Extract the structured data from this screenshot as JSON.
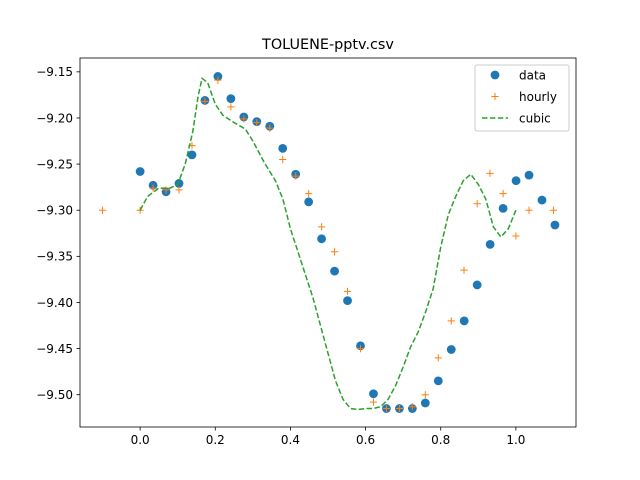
{
  "chart_data": {
    "type": "line",
    "title": "TOLUENE-pptv.csv",
    "xlabel": "",
    "ylabel": "",
    "xlim": [
      -0.16,
      1.16
    ],
    "ylim": [
      -9.535,
      -9.135
    ],
    "x_ticks": [
      0.0,
      0.2,
      0.4,
      0.6,
      0.8,
      1.0
    ],
    "x_tick_labels": [
      "0.0",
      "0.2",
      "0.4",
      "0.6",
      "0.8",
      "1.0"
    ],
    "y_ticks": [
      -9.15,
      -9.2,
      -9.25,
      -9.3,
      -9.35,
      -9.4,
      -9.45,
      -9.5
    ],
    "y_tick_labels": [
      "−9.15",
      "−9.20",
      "−9.25",
      "−9.30",
      "−9.35",
      "−9.40",
      "−9.45",
      "−9.50"
    ],
    "grid": false,
    "legend_position": "top-right",
    "series": [
      {
        "name": "data",
        "kind": "marker-circle",
        "color": "#1f77b4",
        "points": [
          [
            0.0,
            -9.258
          ],
          [
            0.0345,
            -9.273
          ],
          [
            0.069,
            -9.28
          ],
          [
            0.1035,
            -9.271
          ],
          [
            0.138,
            -9.24
          ],
          [
            0.1725,
            -9.181
          ],
          [
            0.207,
            -9.155
          ],
          [
            0.2415,
            -9.179
          ],
          [
            0.276,
            -9.199
          ],
          [
            0.3105,
            -9.204
          ],
          [
            0.345,
            -9.209
          ],
          [
            0.3795,
            -9.233
          ],
          [
            0.414,
            -9.261
          ],
          [
            0.4485,
            -9.291
          ],
          [
            0.483,
            -9.331
          ],
          [
            0.5175,
            -9.366
          ],
          [
            0.552,
            -9.398
          ],
          [
            0.5865,
            -9.447
          ],
          [
            0.621,
            -9.499
          ],
          [
            0.6555,
            -9.515
          ],
          [
            0.69,
            -9.515
          ],
          [
            0.7245,
            -9.515
          ],
          [
            0.759,
            -9.509
          ],
          [
            0.7935,
            -9.485
          ],
          [
            0.828,
            -9.451
          ],
          [
            0.8625,
            -9.42
          ],
          [
            0.897,
            -9.381
          ],
          [
            0.9315,
            -9.337
          ],
          [
            0.966,
            -9.298
          ],
          [
            1.0005,
            -9.268
          ],
          [
            1.035,
            -9.262
          ],
          [
            1.0695,
            -9.289
          ],
          [
            1.104,
            -9.316
          ]
        ]
      },
      {
        "name": "hourly",
        "kind": "marker-plus",
        "color": "#ff7f0e",
        "points": [
          [
            -0.1,
            -9.3
          ],
          [
            0.0,
            -9.3
          ],
          [
            0.0345,
            -9.276
          ],
          [
            0.069,
            -9.278
          ],
          [
            0.1035,
            -9.278
          ],
          [
            0.138,
            -9.23
          ],
          [
            0.1725,
            -9.182
          ],
          [
            0.207,
            -9.159
          ],
          [
            0.2415,
            -9.188
          ],
          [
            0.276,
            -9.201
          ],
          [
            0.3105,
            -9.205
          ],
          [
            0.345,
            -9.211
          ],
          [
            0.3795,
            -9.245
          ],
          [
            0.414,
            -9.263
          ],
          [
            0.4485,
            -9.282
          ],
          [
            0.483,
            -9.318
          ],
          [
            0.5175,
            -9.345
          ],
          [
            0.552,
            -9.388
          ],
          [
            0.5865,
            -9.45
          ],
          [
            0.621,
            -9.508
          ],
          [
            0.6555,
            -9.515
          ],
          [
            0.69,
            -9.515
          ],
          [
            0.7245,
            -9.513
          ],
          [
            0.759,
            -9.5
          ],
          [
            0.7935,
            -9.46
          ],
          [
            0.828,
            -9.42
          ],
          [
            0.862,
            -9.365
          ],
          [
            0.897,
            -9.293
          ],
          [
            0.931,
            -9.26
          ],
          [
            0.966,
            -9.282
          ],
          [
            1.0,
            -9.328
          ],
          [
            1.035,
            -9.3
          ],
          [
            1.1,
            -9.3
          ]
        ]
      },
      {
        "name": "cubic",
        "kind": "line-dashed",
        "color": "#2ca02c",
        "points": [
          [
            0.0,
            -9.3
          ],
          [
            0.02,
            -9.285
          ],
          [
            0.05,
            -9.276
          ],
          [
            0.08,
            -9.276
          ],
          [
            0.1,
            -9.272
          ],
          [
            0.12,
            -9.25
          ],
          [
            0.14,
            -9.215
          ],
          [
            0.155,
            -9.175
          ],
          [
            0.165,
            -9.157
          ],
          [
            0.18,
            -9.162
          ],
          [
            0.2,
            -9.185
          ],
          [
            0.22,
            -9.197
          ],
          [
            0.25,
            -9.205
          ],
          [
            0.28,
            -9.212
          ],
          [
            0.3,
            -9.225
          ],
          [
            0.33,
            -9.248
          ],
          [
            0.36,
            -9.268
          ],
          [
            0.38,
            -9.288
          ],
          [
            0.4,
            -9.32
          ],
          [
            0.42,
            -9.345
          ],
          [
            0.44,
            -9.37
          ],
          [
            0.46,
            -9.395
          ],
          [
            0.48,
            -9.425
          ],
          [
            0.5,
            -9.455
          ],
          [
            0.52,
            -9.485
          ],
          [
            0.54,
            -9.505
          ],
          [
            0.56,
            -9.515
          ],
          [
            0.58,
            -9.516
          ],
          [
            0.6,
            -9.515
          ],
          [
            0.62,
            -9.515
          ],
          [
            0.64,
            -9.513
          ],
          [
            0.66,
            -9.505
          ],
          [
            0.68,
            -9.49
          ],
          [
            0.7,
            -9.47
          ],
          [
            0.72,
            -9.448
          ],
          [
            0.74,
            -9.432
          ],
          [
            0.76,
            -9.41
          ],
          [
            0.78,
            -9.385
          ],
          [
            0.8,
            -9.34
          ],
          [
            0.82,
            -9.305
          ],
          [
            0.84,
            -9.285
          ],
          [
            0.86,
            -9.268
          ],
          [
            0.88,
            -9.261
          ],
          [
            0.9,
            -9.272
          ],
          [
            0.92,
            -9.288
          ],
          [
            0.94,
            -9.318
          ],
          [
            0.96,
            -9.329
          ],
          [
            0.98,
            -9.32
          ],
          [
            1.0,
            -9.3
          ]
        ]
      }
    ]
  }
}
